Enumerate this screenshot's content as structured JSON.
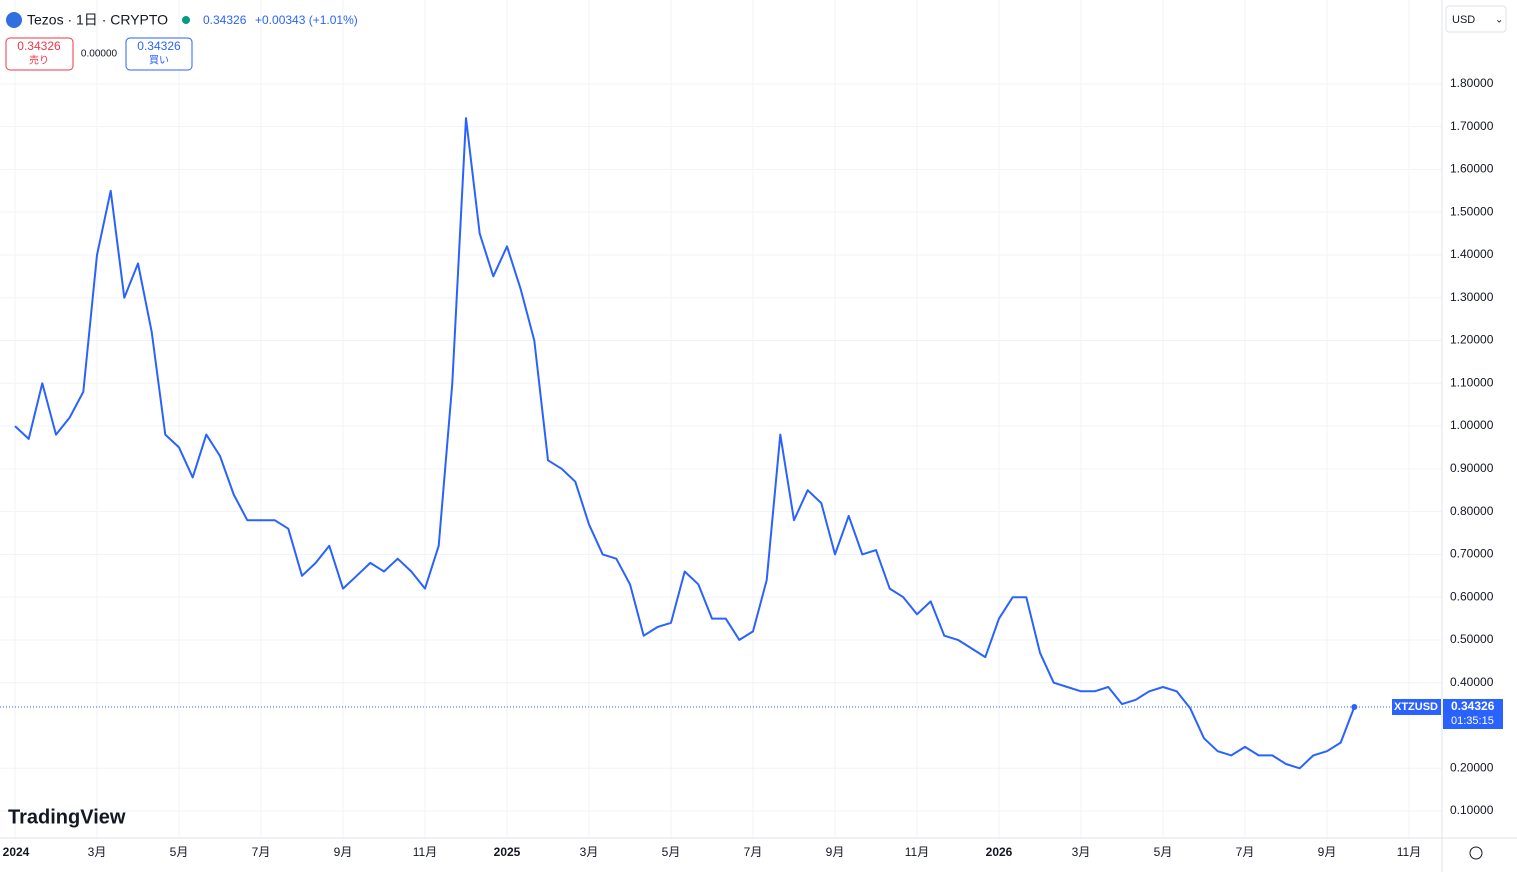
{
  "header": {
    "symbol": "Tezos · 1日 · CRYPTO",
    "change": "+0.00343 (+1.01%)",
    "sell_label": "売り",
    "spread": "0.00000",
    "buy_label": "買い",
    "currency": "USD",
    "countdown": "01:35:15",
    "logo": "TradingView"
  },
  "chart_data": {
    "type": "line",
    "categories": [
      "2024",
      null,
      null,
      null,
      null,
      null,
      "3月",
      null,
      null,
      null,
      null,
      null,
      "5月",
      null,
      null,
      null,
      null,
      null,
      "7月",
      null,
      null,
      null,
      null,
      null,
      "9月",
      null,
      null,
      null,
      null,
      null,
      "11月",
      null,
      null,
      null,
      null,
      null,
      "2025",
      null,
      null,
      null,
      null,
      null,
      "3月",
      null,
      null,
      null,
      null,
      null,
      "5月",
      null,
      null,
      null,
      null,
      null,
      "7月",
      null,
      null,
      null,
      null,
      null,
      "9月",
      null,
      null,
      null,
      null,
      null,
      "11月",
      null,
      null,
      null,
      null,
      null,
      "2026",
      null,
      null,
      null,
      null,
      null,
      "3月",
      null,
      null,
      null,
      null,
      null,
      "5月",
      null,
      null,
      null,
      null,
      null,
      "7月",
      null,
      null,
      null,
      null,
      null,
      "9月",
      null,
      null,
      null,
      null,
      null,
      "11月",
      null,
      null
    ],
    "series": [
      {
        "name": "XTZUSD",
        "color": "#2962ff",
        "values": [
          1.0,
          0.97,
          1.1,
          0.98,
          1.02,
          1.08,
          1.4,
          1.55,
          1.3,
          1.38,
          1.22,
          0.98,
          0.95,
          0.88,
          0.98,
          0.93,
          0.84,
          0.78,
          0.78,
          0.78,
          0.76,
          0.65,
          0.68,
          0.72,
          0.62,
          0.65,
          0.68,
          0.66,
          0.69,
          0.66,
          0.62,
          0.72,
          1.1,
          1.72,
          1.45,
          1.35,
          1.42,
          1.32,
          1.2,
          0.92,
          0.9,
          0.87,
          0.77,
          0.7,
          0.69,
          0.63,
          0.51,
          0.53,
          0.54,
          0.66,
          0.63,
          0.55,
          0.55,
          0.5,
          0.52,
          0.64,
          0.98,
          0.78,
          0.85,
          0.82,
          0.7,
          0.79,
          0.7,
          0.71,
          0.62,
          0.6,
          0.56,
          0.59,
          0.51,
          0.5,
          0.48,
          0.46,
          0.55,
          0.6,
          0.6,
          0.47,
          0.4,
          0.39,
          0.38,
          0.38,
          0.39,
          0.35,
          0.36,
          0.38,
          0.39,
          0.38,
          0.34,
          0.27,
          0.24,
          0.23,
          0.25,
          0.23,
          0.23,
          0.21,
          0.2,
          0.23,
          0.24,
          0.26,
          0.34326,
          null,
          null,
          null,
          null,
          null,
          null
        ]
      }
    ],
    "ylim": [
      0.037,
      1.996
    ],
    "yticks": [
      {
        "value": 0.1,
        "label": "0.10000"
      },
      {
        "value": 0.2,
        "label": "0.20000"
      },
      {
        "value": 0.4,
        "label": "0.40000"
      },
      {
        "value": 0.5,
        "label": "0.50000"
      },
      {
        "value": 0.6,
        "label": "0.60000"
      },
      {
        "value": 0.7,
        "label": "0.70000"
      },
      {
        "value": 0.8,
        "label": "0.80000"
      },
      {
        "value": 0.9,
        "label": "0.90000"
      },
      {
        "value": 1.0,
        "label": "1.00000"
      },
      {
        "value": 1.1,
        "label": "1.10000"
      },
      {
        "value": 1.2,
        "label": "1.20000"
      },
      {
        "value": 1.3,
        "label": "1.30000"
      },
      {
        "value": 1.4,
        "label": "1.40000"
      },
      {
        "value": 1.5,
        "label": "1.50000"
      },
      {
        "value": 1.6,
        "label": "1.60000"
      },
      {
        "value": 1.7,
        "label": "1.70000"
      },
      {
        "value": 1.8,
        "label": "1.80000"
      }
    ],
    "grid": true
  }
}
